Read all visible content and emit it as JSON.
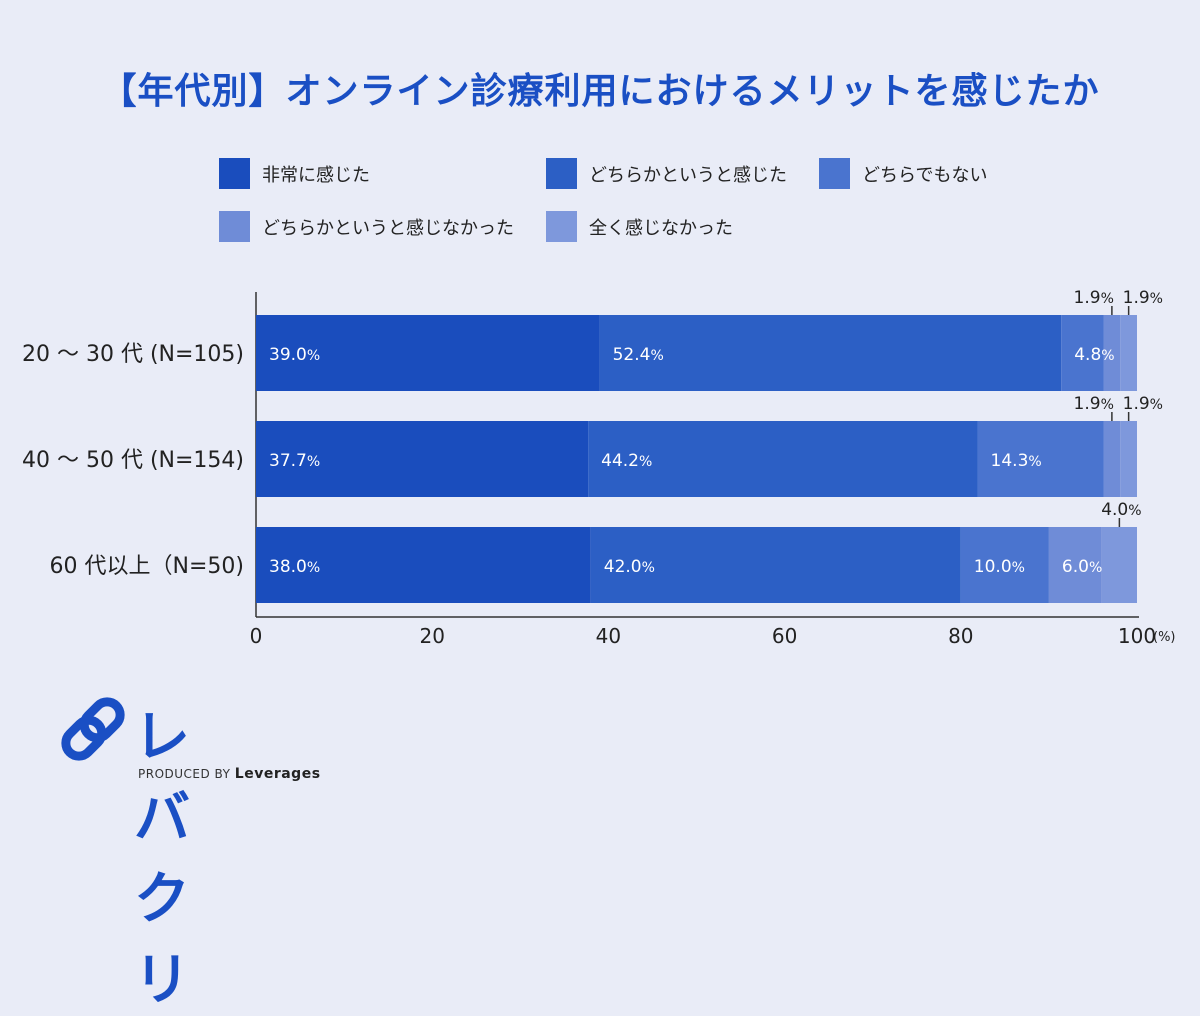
{
  "title": "【年代別】オンライン診療利用におけるメリットを感じたか",
  "logo": {
    "word": "レバクリ",
    "produced_by": "PRODUCED BY",
    "company": "Leverages"
  },
  "chart_data": {
    "type": "bar",
    "orientation": "horizontal",
    "stacked": true,
    "categories": [
      "20 〜 30 代 (N=105)",
      "40 〜 50 代 (N=154)",
      "60 代以上（N=50)"
    ],
    "series": [
      {
        "name": "非常に感じた",
        "values": [
          39.0,
          37.7,
          38.0
        ],
        "color": "#1a4dbd"
      },
      {
        "name": "どちらかというと感じた",
        "values": [
          52.4,
          44.2,
          42.0
        ],
        "color": "#2c5fc5"
      },
      {
        "name": "どちらでもない",
        "values": [
          4.8,
          14.3,
          10.0
        ],
        "color": "#4a74cf"
      },
      {
        "name": "どちらかというと感じなかった",
        "values": [
          1.9,
          1.9,
          6.0
        ],
        "color": "#6f8cd7"
      },
      {
        "name": "全く感じなかった",
        "values": [
          1.9,
          1.9,
          4.0
        ],
        "color": "#7e98dc"
      }
    ],
    "x_ticks": [
      "0",
      "20",
      "40",
      "60",
      "80",
      "100"
    ],
    "xlim": [
      0,
      100
    ],
    "x_unit": "(%)",
    "value_suffix": "%",
    "legend_position": "top"
  }
}
